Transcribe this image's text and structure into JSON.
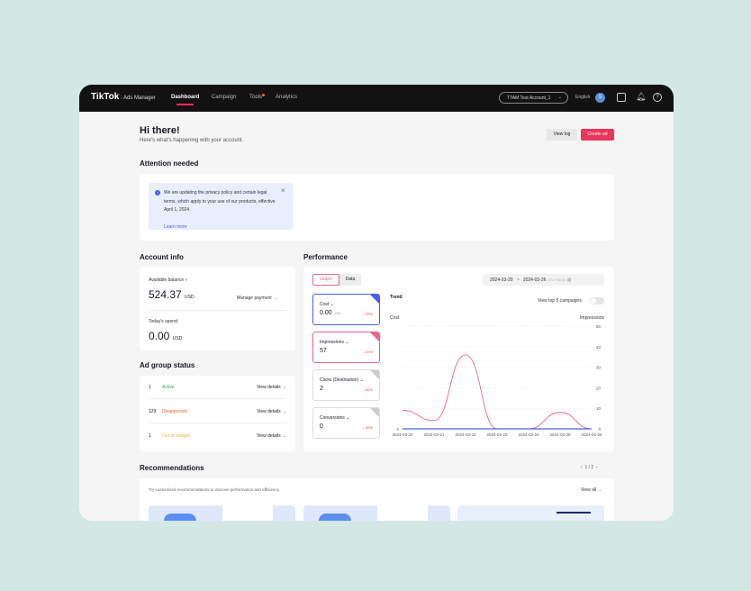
{
  "nav": {
    "logo": "TikTok",
    "logo_sub": "Ads Manager",
    "items": [
      "Dashboard",
      "Campaign",
      "Tools",
      "Analytics"
    ],
    "account": "TTAM Test Account_1",
    "language": "English",
    "avatar": "S"
  },
  "header": {
    "title": "Hi there!",
    "subtitle": "Here's what's happening with your account.",
    "view_log": "View log",
    "create_ad": "Create ad"
  },
  "attention": {
    "title": "Attention needed",
    "notice": "We are updating the privacy policy and certain legal terms, which apply to your use of our products, effective April 1, 2024.",
    "link": "Learn more"
  },
  "account_info": {
    "title": "Account info",
    "balance_label": "Available balance",
    "balance": "524.37",
    "currency": "USD",
    "manage": "Manage payment →",
    "spend_label": "Today's spend:",
    "spend": "0.00"
  },
  "ad_group_status": {
    "title": "Ad group status",
    "rows": [
      {
        "count": "1",
        "status": "Active",
        "color": "#3aa76d",
        "link": "View details →"
      },
      {
        "count": "129",
        "status": "Disapproved",
        "color": "#d9643a",
        "link": "View details →"
      },
      {
        "count": "1",
        "status": "Out of budget",
        "color": "#e0b347",
        "link": "View details →"
      }
    ]
  },
  "performance": {
    "title": "Performance",
    "tabs": [
      "Graph",
      "Data"
    ],
    "date_start": "2024-03-20",
    "date_sep": "~",
    "date_end": "2024-03-26",
    "timezone": "UTC+08:00",
    "metrics": [
      {
        "label": "Cost",
        "value": "0.00",
        "unit": "USD",
        "change": "↓ 99%",
        "color": "#4a5de8"
      },
      {
        "label": "Impressions",
        "value": "57",
        "unit": "",
        "change": "↓ 67%",
        "color": "#e8688a"
      },
      {
        "label": "Clicks (Destination)",
        "value": "2",
        "unit": "",
        "change": "↓ 82%",
        "color": "#cccccc"
      },
      {
        "label": "Conversions",
        "value": "0",
        "unit": "",
        "change": "↓ 99%",
        "color": "#cccccc"
      }
    ],
    "trend": "Trend",
    "toggle_label": "View top 5 campaigns",
    "toggle_on": false
  },
  "chart_data": {
    "type": "line",
    "x": [
      "2024-03-20",
      "2024-03-21",
      "2024-03-22",
      "2024-03-23",
      "2024-03-24",
      "2024-03-25",
      "2024-03-26"
    ],
    "ylabel_left": "Cost",
    "ylabel_right": "Impressions",
    "y_right_ticks": [
      "50",
      "40",
      "30",
      "20",
      "10",
      "0"
    ],
    "y_left_ticks": [
      "0"
    ],
    "ylim_right": [
      0,
      50
    ],
    "grid": true,
    "series": [
      {
        "name": "Impressions",
        "color": "#e8688a",
        "values": [
          9,
          4,
          36,
          0,
          0,
          8,
          0
        ]
      },
      {
        "name": "Cost",
        "color": "#4a5de8",
        "values": [
          0,
          0,
          0,
          0,
          0,
          0,
          0
        ]
      }
    ]
  },
  "recommendations": {
    "title": "Recommendations",
    "page": "1",
    "pages": "2",
    "sep": "/",
    "description": "Try customized recommendations to improve performance and efficiency.",
    "view_all": "View all →"
  }
}
